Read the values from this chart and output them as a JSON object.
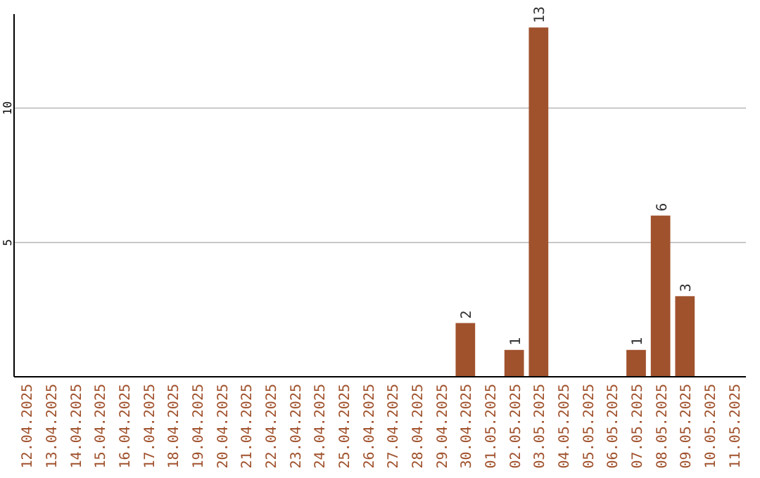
{
  "chart_data": {
    "type": "bar",
    "categories": [
      "12.04.2025",
      "13.04.2025",
      "14.04.2025",
      "15.04.2025",
      "16.04.2025",
      "17.04.2025",
      "18.04.2025",
      "19.04.2025",
      "20.04.2025",
      "21.04.2025",
      "22.04.2025",
      "23.04.2025",
      "24.04.2025",
      "25.04.2025",
      "26.04.2025",
      "27.04.2025",
      "28.04.2025",
      "29.04.2025",
      "30.04.2025",
      "01.05.2025",
      "02.05.2025",
      "03.05.2025",
      "04.05.2025",
      "05.05.2025",
      "06.05.2025",
      "07.05.2025",
      "08.05.2025",
      "09.05.2025",
      "10.05.2025",
      "11.05.2025"
    ],
    "values": [
      null,
      null,
      null,
      null,
      null,
      null,
      null,
      null,
      null,
      null,
      null,
      null,
      null,
      null,
      null,
      null,
      null,
      null,
      2,
      null,
      1,
      13,
      null,
      null,
      null,
      1,
      6,
      3,
      null,
      null
    ],
    "color": "#a0522d",
    "ylim": [
      0,
      13.5
    ],
    "yticks": [
      5,
      10
    ],
    "grid": "y",
    "data_labels": true
  }
}
